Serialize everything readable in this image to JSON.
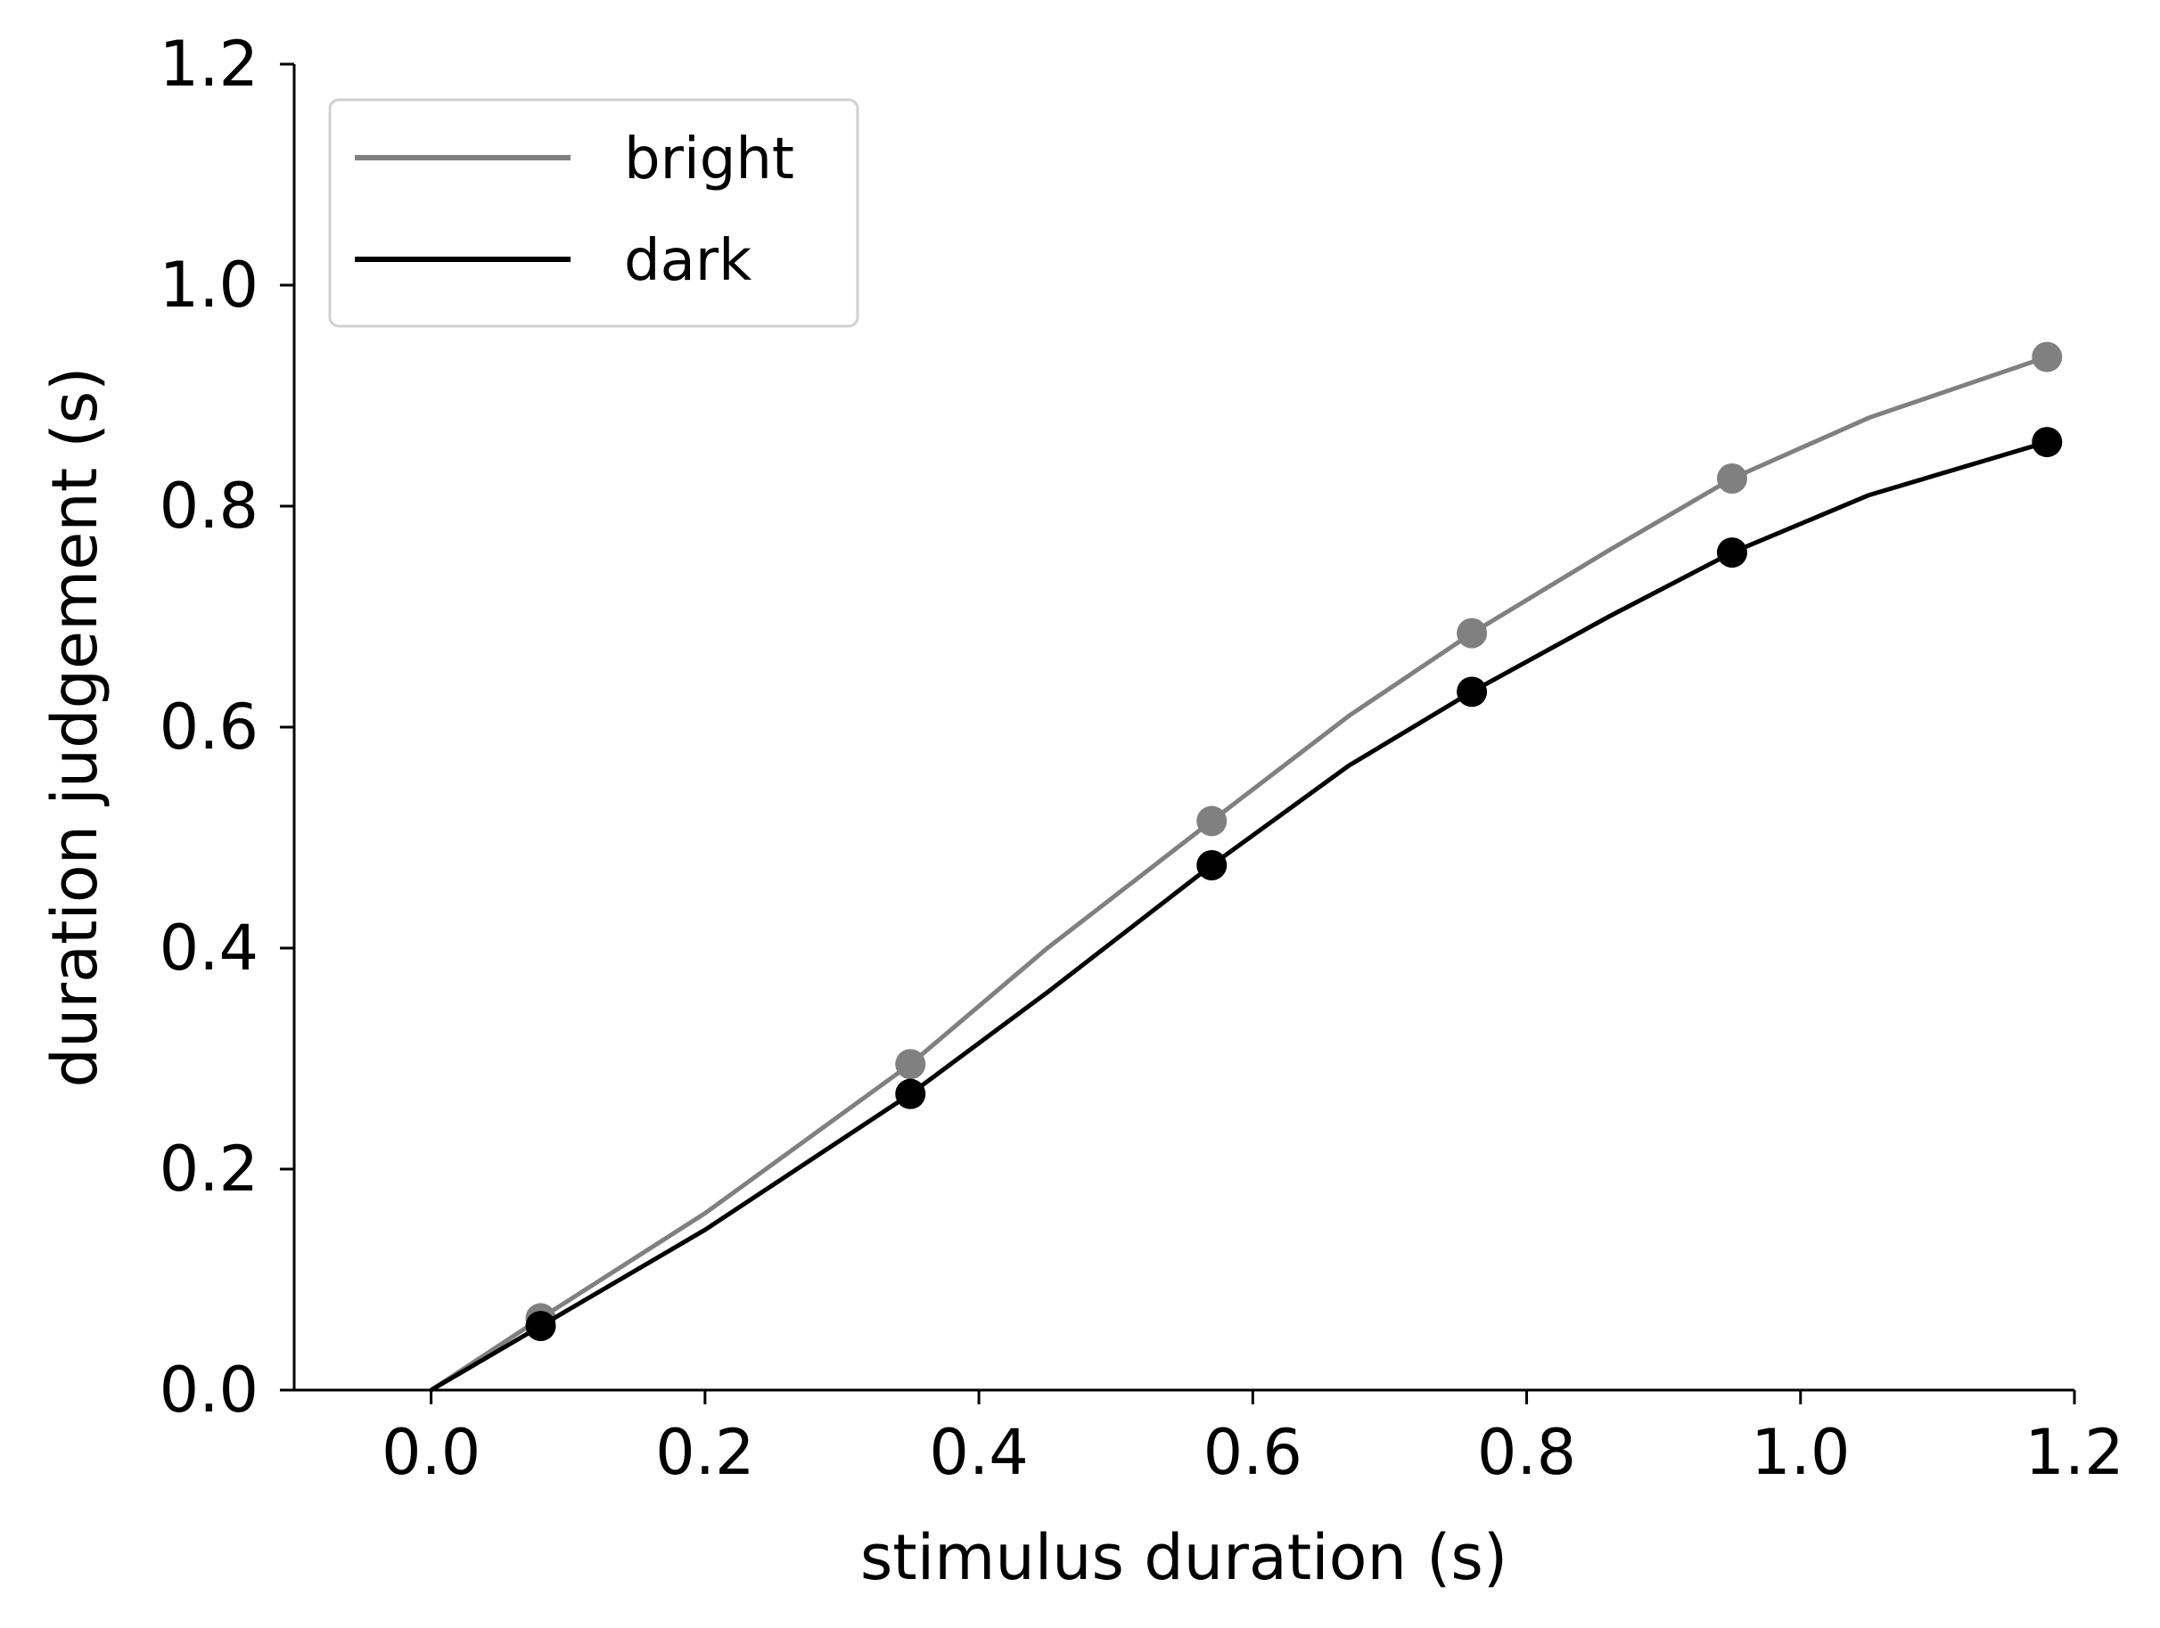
{
  "chart_data": {
    "type": "line",
    "title": "",
    "xlabel": "stimulus duration (s)",
    "ylabel": "duration judgement (s)",
    "xlim": [
      -0.1,
      1.2
    ],
    "ylim": [
      0.0,
      1.2
    ],
    "xticks": [
      "0.0",
      "0.2",
      "0.4",
      "0.6",
      "0.8",
      "1.0",
      "1.2"
    ],
    "yticks": [
      "0.0",
      "0.2",
      "0.4",
      "0.6",
      "0.8",
      "1.0",
      "1.2"
    ],
    "grid": false,
    "legend_position": "top-left",
    "series": [
      {
        "name": "bright",
        "color": "#808080",
        "line": {
          "x": [
            0.0,
            0.08,
            0.2,
            0.35,
            0.45,
            0.57,
            0.67,
            0.76,
            0.86,
            0.95,
            1.05,
            1.18
          ],
          "y": [
            0.0,
            0.065,
            0.16,
            0.295,
            0.4,
            0.515,
            0.61,
            0.685,
            0.76,
            0.825,
            0.88,
            0.935
          ]
        },
        "markers": {
          "x": [
            0.08,
            0.35,
            0.57,
            0.76,
            0.95,
            1.18
          ],
          "y": [
            0.065,
            0.295,
            0.515,
            0.685,
            0.825,
            0.935
          ]
        }
      },
      {
        "name": "dark",
        "color": "#000000",
        "line": {
          "x": [
            0.0,
            0.08,
            0.2,
            0.35,
            0.45,
            0.57,
            0.67,
            0.76,
            0.86,
            0.95,
            1.05,
            1.18
          ],
          "y": [
            0.0,
            0.058,
            0.145,
            0.268,
            0.36,
            0.475,
            0.565,
            0.632,
            0.7,
            0.758,
            0.81,
            0.858
          ]
        },
        "markers": {
          "x": [
            0.08,
            0.35,
            0.57,
            0.76,
            0.95,
            1.18
          ],
          "y": [
            0.058,
            0.268,
            0.475,
            0.632,
            0.758,
            0.858
          ]
        }
      }
    ]
  }
}
